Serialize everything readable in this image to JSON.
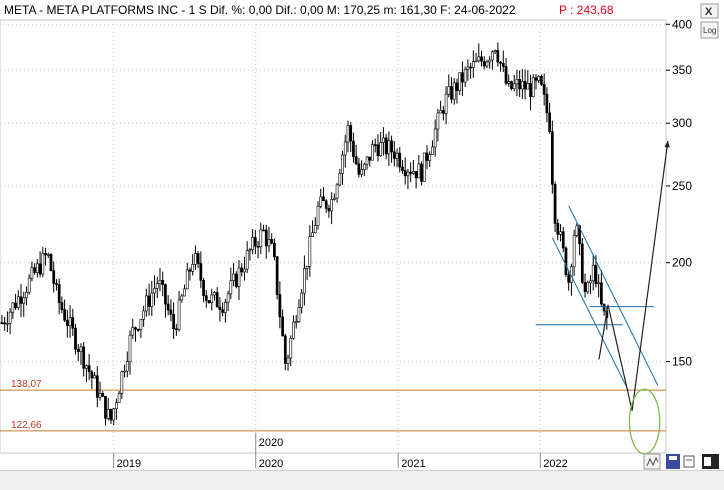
{
  "header": {
    "text": "META - META PLATFORMS INC -  1 S Dif. %: 0,00  Dif.: 0,00  M: 170,25  m: 161,30  F: 24-06-2022",
    "price": "P : 243,68"
  },
  "toolbar": {
    "close_glyph": "X",
    "log_label": "Log",
    "icons": [
      "zigzag-icon",
      "save-icon",
      "print-icon"
    ]
  },
  "chart_data": {
    "type": "candlestick",
    "title": "META - META PLATFORMS INC",
    "timeframe": "1 S",
    "scale": "log",
    "ylim": [
      115,
      405
    ],
    "xlim": [
      "2018-03-15",
      "2022-11-20"
    ],
    "y_ticks": [
      150,
      200,
      250,
      300,
      350,
      400
    ],
    "x_ticks": [
      {
        "date": "2019-01-01",
        "label": "2019"
      },
      {
        "date": "2020-01-01",
        "label": "2020"
      },
      {
        "date": "2021-01-01",
        "label": "2021"
      },
      {
        "date": "2022-01-01",
        "label": "2022"
      }
    ],
    "extra_x_label": {
      "date": "2020-01-01",
      "label": "2020"
    },
    "grid": true,
    "colors": {
      "up": "#ffffff",
      "down": "#000000",
      "support": "#c8782a",
      "channel": "#1a6fb0",
      "projection": "#222222",
      "target_circle": "#7ab648",
      "level_text": "#c0392b",
      "price_text": "#e8001c"
    },
    "support_levels": [
      {
        "value": 138.07,
        "label": "138,07"
      },
      {
        "value": 122.66,
        "label": "122,66"
      }
    ],
    "horizontal_lines": [
      {
        "value": 176,
        "from": "2022-05-08",
        "to": "2022-10-20",
        "color": "#1a6fb0"
      },
      {
        "value": 167,
        "from": "2021-12-20",
        "to": "2022-08-01",
        "color": "#1a6fb0"
      }
    ],
    "channel_lines": [
      {
        "from": {
          "date": "2022-03-15",
          "value": 236
        },
        "to": {
          "date": "2022-10-30",
          "value": 140
        }
      },
      {
        "from": {
          "date": "2022-02-01",
          "value": 215
        },
        "to": {
          "date": "2022-08-15",
          "value": 138
        }
      }
    ],
    "projection_path": [
      {
        "date": "2022-06-01",
        "value": 151
      },
      {
        "date": "2022-06-24",
        "value": 177
      },
      {
        "date": "2022-08-25",
        "value": 130
      },
      {
        "date": "2022-11-25",
        "value": 285
      }
    ],
    "target_zone": {
      "date": "2022-09-26",
      "value": 126,
      "rx_days": 39,
      "ry_value_range": [
        116,
        140
      ]
    },
    "anchor_points": [
      {
        "date": "2018-03-20",
        "value": 168
      },
      {
        "date": "2018-07-15",
        "value": 205
      },
      {
        "date": "2018-08-10",
        "value": 180
      },
      {
        "date": "2018-10-15",
        "value": 152
      },
      {
        "date": "2018-12-24",
        "value": 126
      },
      {
        "date": "2019-02-15",
        "value": 162
      },
      {
        "date": "2019-04-25",
        "value": 190
      },
      {
        "date": "2019-06-05",
        "value": 165
      },
      {
        "date": "2019-07-25",
        "value": 204
      },
      {
        "date": "2019-08-30",
        "value": 180
      },
      {
        "date": "2019-10-10",
        "value": 178
      },
      {
        "date": "2019-12-20",
        "value": 208
      },
      {
        "date": "2020-01-20",
        "value": 219
      },
      {
        "date": "2020-02-15",
        "value": 205
      },
      {
        "date": "2020-03-18",
        "value": 148
      },
      {
        "date": "2020-04-20",
        "value": 180
      },
      {
        "date": "2020-06-10",
        "value": 235
      },
      {
        "date": "2020-07-15",
        "value": 240
      },
      {
        "date": "2020-08-25",
        "value": 295
      },
      {
        "date": "2020-09-25",
        "value": 255
      },
      {
        "date": "2020-11-01",
        "value": 282
      },
      {
        "date": "2020-12-20",
        "value": 277
      },
      {
        "date": "2021-01-20",
        "value": 265
      },
      {
        "date": "2021-03-01",
        "value": 260
      },
      {
        "date": "2021-05-01",
        "value": 320
      },
      {
        "date": "2021-07-01",
        "value": 350
      },
      {
        "date": "2021-08-20",
        "value": 365
      },
      {
        "date": "2021-09-07",
        "value": 378
      },
      {
        "date": "2021-10-10",
        "value": 330
      },
      {
        "date": "2021-11-01",
        "value": 335
      },
      {
        "date": "2021-12-10",
        "value": 332
      },
      {
        "date": "2021-12-31",
        "value": 336
      },
      {
        "date": "2022-01-25",
        "value": 300
      },
      {
        "date": "2022-02-05",
        "value": 235
      },
      {
        "date": "2022-03-15",
        "value": 190
      },
      {
        "date": "2022-04-01",
        "value": 225
      },
      {
        "date": "2022-04-28",
        "value": 180
      },
      {
        "date": "2022-05-20",
        "value": 198
      },
      {
        "date": "2022-06-10",
        "value": 172
      },
      {
        "date": "2022-06-24",
        "value": 169
      }
    ]
  }
}
